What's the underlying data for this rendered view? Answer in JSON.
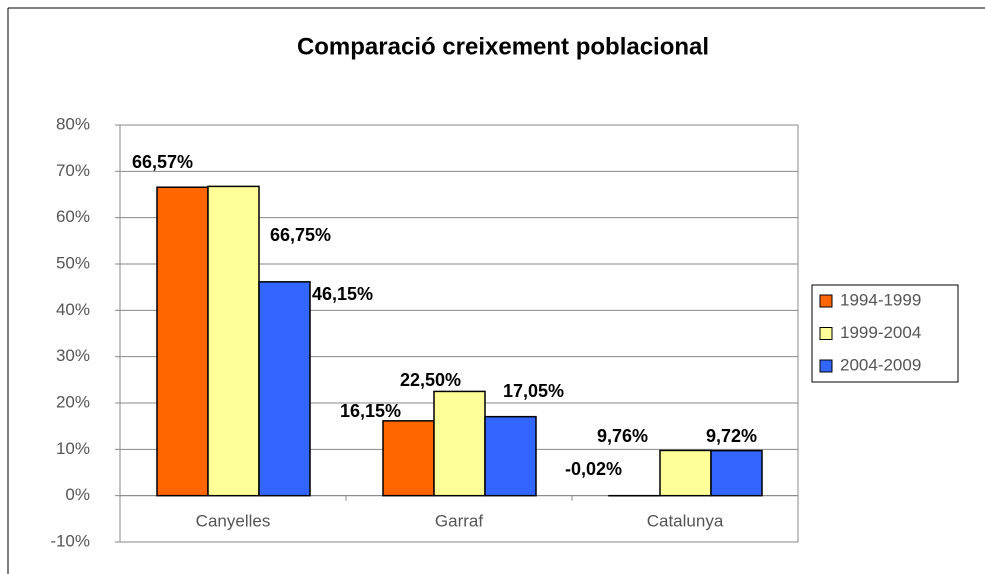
{
  "chart_data": {
    "type": "bar",
    "title": "Comparació creixement poblacional",
    "categories": [
      "Canyelles",
      "Garraf",
      "Catalunya"
    ],
    "series": [
      {
        "name": "1994-1999",
        "color": "#ff6600",
        "values": [
          66.57,
          16.15,
          -0.02
        ],
        "value_labels": [
          "66,57%",
          "16,15%",
          "-0,02%"
        ]
      },
      {
        "name": "1999-2004",
        "color": "#ffff99",
        "values": [
          66.75,
          22.5,
          9.76
        ],
        "value_labels": [
          "66,75%",
          "22,50%",
          "9,76%"
        ]
      },
      {
        "name": "2004-2009",
        "color": "#3366ff",
        "values": [
          46.15,
          17.05,
          9.72
        ],
        "value_labels": [
          "46,15%",
          "17,05%",
          "9,72%"
        ]
      }
    ],
    "ylim": [
      -10,
      80
    ],
    "yticks": [
      {
        "value": -10,
        "label": "-10%"
      },
      {
        "value": 0,
        "label": "0%"
      },
      {
        "value": 10,
        "label": "10%"
      },
      {
        "value": 20,
        "label": "20%"
      },
      {
        "value": 30,
        "label": "30%"
      },
      {
        "value": 40,
        "label": "40%"
      },
      {
        "value": 50,
        "label": "50%"
      },
      {
        "value": 60,
        "label": "60%"
      },
      {
        "value": 70,
        "label": "70%"
      },
      {
        "value": 80,
        "label": "80%"
      }
    ],
    "grid": true,
    "legend": "right"
  }
}
